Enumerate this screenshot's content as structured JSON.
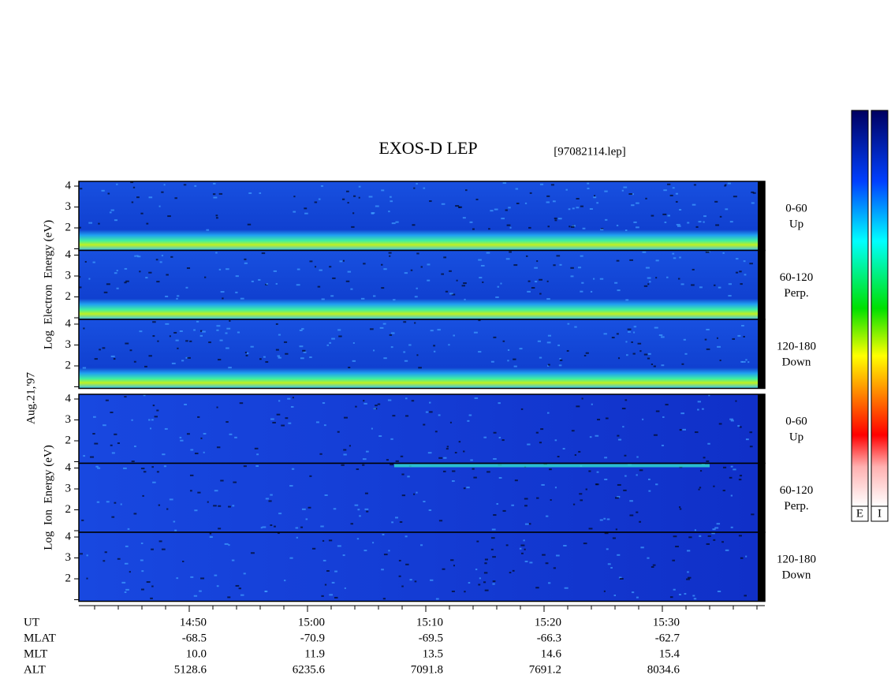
{
  "title": "EXOS-D LEP",
  "file": "[97082114.lep]",
  "date": "Aug.21,'97",
  "yticks": [
    2,
    3,
    4
  ],
  "panels": [
    {
      "label": "Log  Electron  Energy (eV)",
      "subpanels": [
        {
          "range": "0-60",
          "direction": "Up"
        },
        {
          "range": "60-120",
          "direction": "Perp."
        },
        {
          "range": "120-180",
          "direction": "Down"
        }
      ]
    },
    {
      "label": "Log  Ion  Energy (eV)",
      "subpanels": [
        {
          "range": "0-60",
          "direction": "Up"
        },
        {
          "range": "60-120",
          "direction": "Perp."
        },
        {
          "range": "120-180",
          "direction": "Down"
        }
      ]
    }
  ],
  "ephemeris": [
    {
      "name": "UT",
      "values": [
        "14:50",
        "15:00",
        "15:10",
        "15:20",
        "15:30"
      ]
    },
    {
      "name": "MLAT",
      "values": [
        "-68.5",
        "-70.9",
        "-69.5",
        "-66.3",
        "-62.7"
      ]
    },
    {
      "name": "MLT",
      "values": [
        "10.0",
        "11.9",
        "13.5",
        "14.6",
        "15.4"
      ]
    },
    {
      "name": "ALT",
      "values": [
        "5128.6",
        "6235.6",
        "7091.8",
        "7691.2",
        "8034.6"
      ]
    }
  ],
  "colorbars": [
    "E",
    "I"
  ]
}
